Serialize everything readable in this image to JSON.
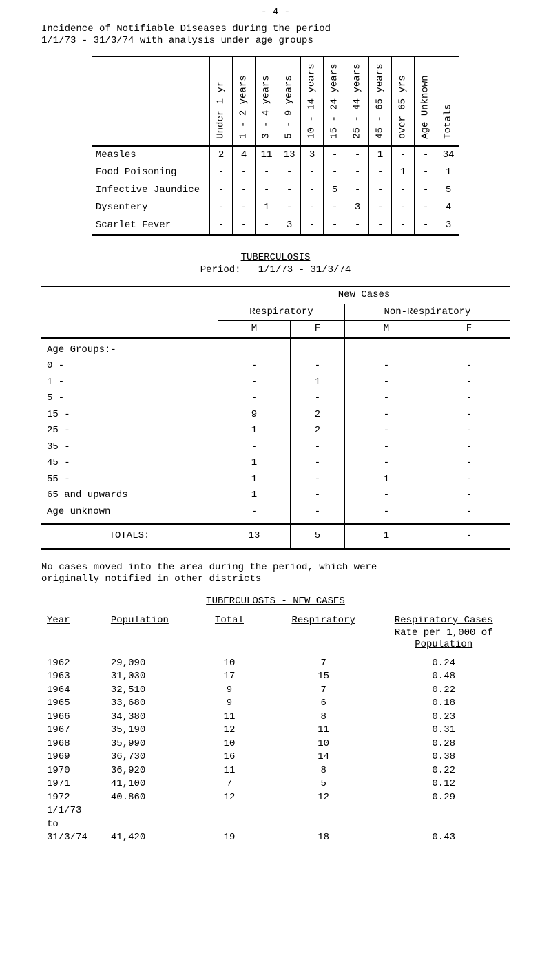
{
  "page_number": "- 4 -",
  "intro_lines": [
    "Incidence of Notifiable Diseases during the period",
    "1/1/73  -  31/3/74 with analysis under age groups"
  ],
  "table1": {
    "columns": [
      "Under 1 yr",
      "1 - 2 years",
      "3 - 4 years",
      "5 - 9 years",
      "10 - 14 years",
      "15 - 24 years",
      "25 - 44 years",
      "45 - 65 years",
      "over 65 yrs",
      "Age Unknown",
      "Totals"
    ],
    "rows": [
      {
        "label": "Measles",
        "cells": [
          "2",
          "4",
          "11",
          "13",
          "3",
          "-",
          "-",
          "1",
          "-",
          "-",
          "34"
        ]
      },
      {
        "label": "Food Poisoning",
        "cells": [
          "-",
          "-",
          "-",
          "-",
          "-",
          "-",
          "-",
          "-",
          "1",
          "-",
          "1"
        ]
      },
      {
        "label": "Infective Jaundice",
        "cells": [
          "-",
          "-",
          "-",
          "-",
          "-",
          "5",
          "-",
          "-",
          "-",
          "-",
          "5"
        ]
      },
      {
        "label": "Dysentery",
        "cells": [
          "-",
          "-",
          "1",
          "-",
          "-",
          "-",
          "3",
          "-",
          "-",
          "-",
          "4"
        ]
      },
      {
        "label": "Scarlet Fever",
        "cells": [
          "-",
          "-",
          "-",
          "3",
          "-",
          "-",
          "-",
          "-",
          "-",
          "-",
          "3"
        ]
      }
    ]
  },
  "tb_title": "TUBERCULOSIS",
  "tb_period_label": "Period:",
  "tb_period_value": "1/1/73  -  31/3/74",
  "table2": {
    "super_header": "New Cases",
    "group_headers": [
      "Respiratory",
      "Non-Respiratory"
    ],
    "sub_headers": [
      "M",
      "F",
      "M",
      "F"
    ],
    "section_label": "Age Groups:-",
    "rows": [
      {
        "label": "0 -",
        "cells": [
          "-",
          "-",
          "-",
          "-"
        ]
      },
      {
        "label": "1 -",
        "cells": [
          "-",
          "1",
          "-",
          "-"
        ]
      },
      {
        "label": "5 -",
        "cells": [
          "-",
          "-",
          "-",
          "-"
        ]
      },
      {
        "label": "15 -",
        "cells": [
          "9",
          "2",
          "-",
          "-"
        ]
      },
      {
        "label": "25 -",
        "cells": [
          "1",
          "2",
          "-",
          "-"
        ]
      },
      {
        "label": "35 -",
        "cells": [
          "-",
          "-",
          "-",
          "-"
        ]
      },
      {
        "label": "45 -",
        "cells": [
          "1",
          "-",
          "-",
          "-"
        ]
      },
      {
        "label": "55 -",
        "cells": [
          "1",
          "-",
          "1",
          "-"
        ]
      },
      {
        "label": "65 and upwards",
        "cells": [
          "1",
          "-",
          "-",
          "-"
        ]
      },
      {
        "label": "Age unknown",
        "cells": [
          "-",
          "-",
          "-",
          "-"
        ]
      }
    ],
    "totals_label": "TOTALS:",
    "totals": [
      "13",
      "5",
      "1",
      "-"
    ]
  },
  "note_lines": [
    "No cases moved into the area during the period, which were",
    "originally notified in other districts"
  ],
  "table3": {
    "heading": "TUBERCULOSIS  -  NEW CASES",
    "columns": [
      "Year",
      "Population",
      "Total",
      "Respiratory"
    ],
    "rate_header_lines": [
      "Respiratory Cases",
      "Rate per 1,000 of",
      "Population"
    ],
    "rows": [
      {
        "year": "1962",
        "pop": "29,090",
        "total": "10",
        "resp": "7",
        "rate": "0.24"
      },
      {
        "year": "1963",
        "pop": "31,030",
        "total": "17",
        "resp": "15",
        "rate": "0.48"
      },
      {
        "year": "1964",
        "pop": "32,510",
        "total": "9",
        "resp": "7",
        "rate": "0.22"
      },
      {
        "year": "1965",
        "pop": "33,680",
        "total": "9",
        "resp": "6",
        "rate": "0.18"
      },
      {
        "year": "1966",
        "pop": "34,380",
        "total": "11",
        "resp": "8",
        "rate": "0.23"
      },
      {
        "year": "1967",
        "pop": "35,190",
        "total": "12",
        "resp": "11",
        "rate": "0.31"
      },
      {
        "year": "1968",
        "pop": "35,990",
        "total": "10",
        "resp": "10",
        "rate": "0.28"
      },
      {
        "year": "1969",
        "pop": "36,730",
        "total": "16",
        "resp": "14",
        "rate": "0.38"
      },
      {
        "year": "1970",
        "pop": "36,920",
        "total": "11",
        "resp": "8",
        "rate": "0.22"
      },
      {
        "year": "1971",
        "pop": "41,100",
        "total": "7",
        "resp": "5",
        "rate": "0.12"
      },
      {
        "year": "1972",
        "pop": "40.860",
        "total": "12",
        "resp": "12",
        "rate": "0.29"
      }
    ],
    "footer_period_label": "1/1/73\n  to\n31/3/74",
    "footer": {
      "pop": "41,420",
      "total": "19",
      "resp": "18",
      "rate": "0.43"
    }
  }
}
